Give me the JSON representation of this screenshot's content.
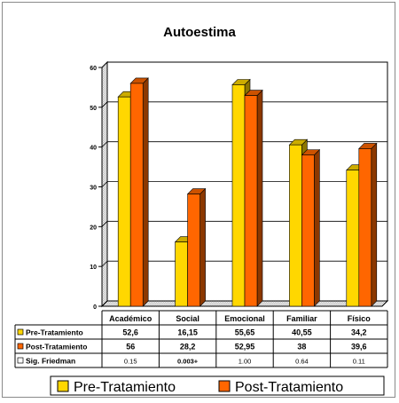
{
  "chart_data": {
    "type": "bar",
    "title": "Autoestima",
    "categories": [
      "Académico",
      "Social",
      "Emocional",
      "Familiar",
      "Físico"
    ],
    "series": [
      {
        "name": "Pre-Tratamiento",
        "color": "#FFD700",
        "values": [
          52.6,
          16.15,
          55.65,
          40.55,
          34.2
        ],
        "labels": [
          "52,6",
          "16,15",
          "55,65",
          "40,55",
          "34,2"
        ]
      },
      {
        "name": "Post-Tratamiento",
        "color": "#FF6600",
        "values": [
          56,
          28.2,
          52.95,
          38,
          39.6
        ],
        "labels": [
          "56",
          "28,2",
          "52,95",
          "38",
          "39,6"
        ]
      }
    ],
    "extra_row": {
      "name": "Sig. Friedman",
      "labels": [
        "0.15",
        "0.003+",
        "1.00",
        "0.64",
        "0.11"
      ]
    },
    "yticks": [
      "0",
      "10",
      "20",
      "30",
      "40",
      "50",
      "60"
    ],
    "ylim": [
      0,
      60
    ],
    "grid": true,
    "legend_position": "bottom",
    "legend": [
      "Pre-Tratamiento",
      "Post-Tratamiento"
    ]
  }
}
